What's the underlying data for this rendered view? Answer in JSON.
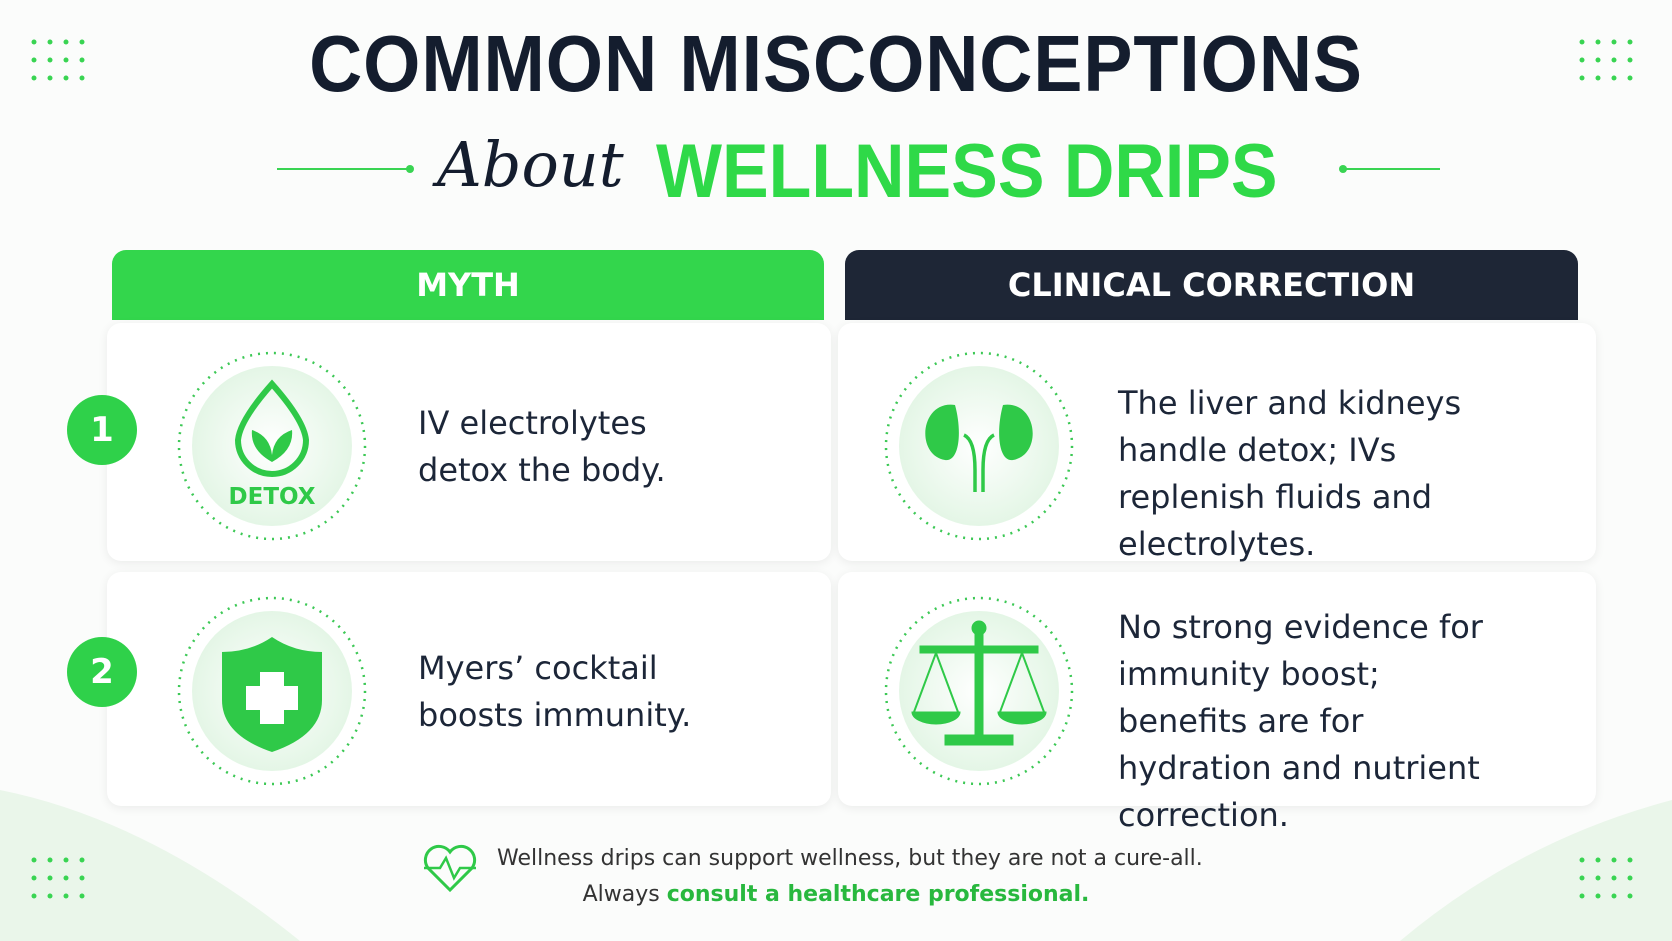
{
  "header": {
    "title": "COMMON MISCONCEPTIONS",
    "script": "About",
    "subtitle": "WELLNESS DRIPS"
  },
  "table": {
    "headers": [
      "MYTH",
      "CLINICAL CORRECTION"
    ],
    "rows": [
      {
        "number": "1",
        "icon_label": "DETOX",
        "myth": "IV electrolytes detox the body.",
        "correction": "The liver and kidneys handle detox; IVs replenish fluids and electrolytes."
      },
      {
        "number": "2",
        "myth": "Myers’ cocktail boosts immunity.",
        "correction": "No strong evidence for immunity boost; benefits are for hydration and nutrient correction."
      }
    ]
  },
  "footer": {
    "text": "Wellness drips can support wellness, but they are not a cure-all.",
    "prefix": "Always",
    "highlight": "consult a healthcare professional."
  }
}
